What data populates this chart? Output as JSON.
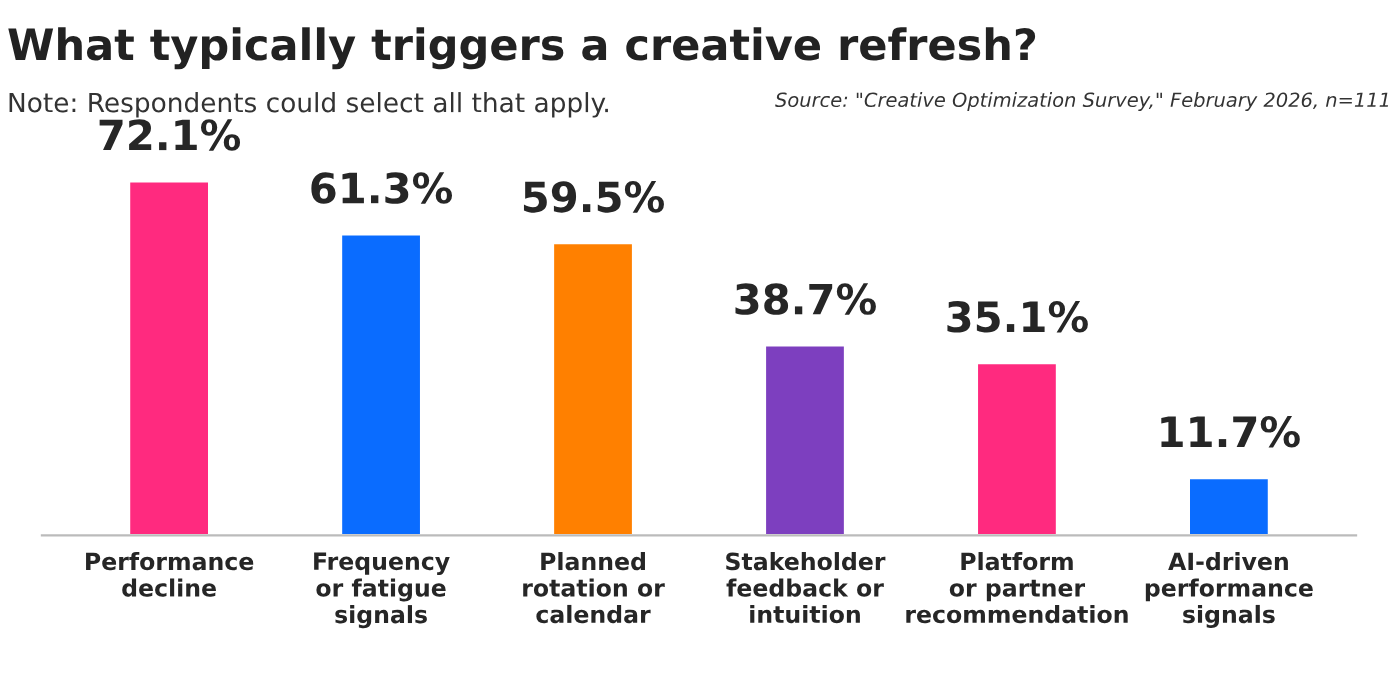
{
  "chart_data": {
    "type": "bar",
    "title": "What typically triggers a creative refresh?",
    "subtitle": "Note: Respondents could select all that apply.",
    "annotations": [
      "Source: \"Creative Optimization Survey,\" February 2026, n=111"
    ],
    "categories": [
      "Performance\ndecline",
      "Frequency\nor fatigue\nsignals",
      "Planned\nrotation or\ncalendar",
      "Stakeholder\nfeedback or\nintuition",
      "Platform\nor partner\nrecommendation",
      "AI-driven\nperformance\nsignals"
    ],
    "values": [
      72.1,
      61.3,
      59.5,
      38.7,
      35.1,
      11.7
    ],
    "value_labels": [
      "72.1%",
      "61.3%",
      "59.5%",
      "38.7%",
      "35.1%",
      "11.7%"
    ],
    "colors": [
      "#ff2a7f",
      "#0a6cff",
      "#ff8000",
      "#7d3fbf",
      "#ff2a7f",
      "#0a6cff"
    ],
    "grid": false,
    "legend": false
  }
}
